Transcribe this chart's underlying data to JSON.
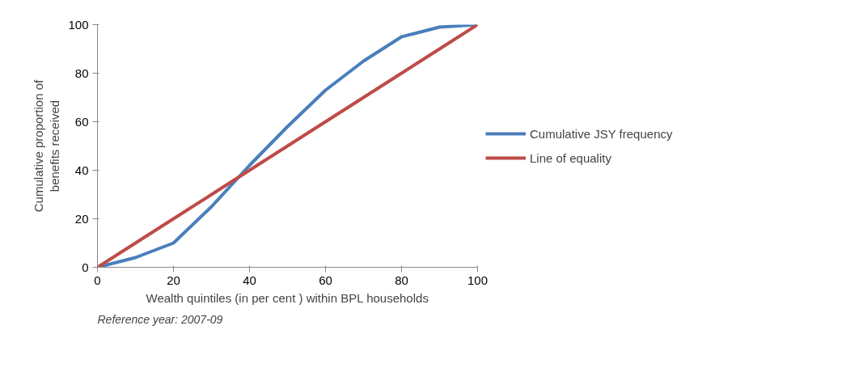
{
  "chart_data": {
    "type": "line",
    "xlabel": "Wealth quintiles (in per cent ) within BPL households",
    "ylabel": "Cumulative proportion of\nbenefits received",
    "x": [
      0,
      10,
      20,
      30,
      40,
      50,
      60,
      70,
      80,
      90,
      100
    ],
    "series": [
      {
        "name": "Cumulative JSY frequency",
        "color": "#4a7ebb",
        "values": [
          0,
          4,
          10,
          25,
          42,
          58,
          73,
          85,
          95,
          99,
          100
        ]
      },
      {
        "name": "Line of equality",
        "color": "#be4b48",
        "values": [
          0,
          10,
          20,
          30,
          40,
          50,
          60,
          70,
          80,
          90,
          100
        ]
      }
    ],
    "xlim": [
      0,
      100
    ],
    "ylim": [
      0,
      100
    ],
    "xticks": [
      0,
      20,
      40,
      60,
      80,
      100
    ],
    "yticks": [
      0,
      20,
      40,
      60,
      80,
      100
    ],
    "grid": false,
    "legend": "right",
    "marker": "none",
    "line_style": "solid",
    "annotations": [
      "Reference year: 2007-09"
    ]
  }
}
